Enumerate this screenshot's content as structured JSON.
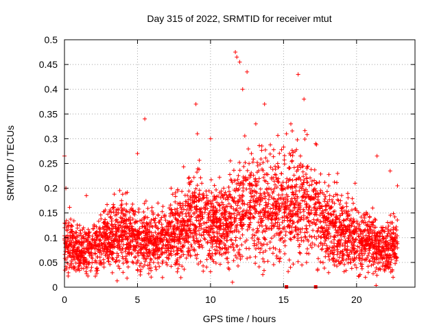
{
  "chart_data": {
    "type": "scatter",
    "title": "Day 315 of 2022, SRMTID for receiver mtut",
    "xlabel": "GPS time / hours",
    "ylabel": "SRMTID / TECUs",
    "xlim": [
      0,
      24
    ],
    "ylim": [
      0,
      0.5
    ],
    "x_ticks": [
      0,
      5,
      10,
      15,
      20
    ],
    "x_tick_labels": [
      "0",
      "5",
      "10",
      "15",
      "20"
    ],
    "y_ticks": [
      0,
      0.05,
      0.1,
      0.15,
      0.2,
      0.25,
      0.3,
      0.35,
      0.4,
      0.45,
      0.5
    ],
    "y_tick_labels": [
      "0",
      "0.05",
      "0.1",
      "0.15",
      "0.2",
      "0.25",
      "0.3",
      "0.35",
      "0.4",
      "0.45",
      "0.5"
    ],
    "grid": true,
    "marker": "plus",
    "color": "#ff0000",
    "density_profile": [
      {
        "x": 0.0,
        "y": 0.1
      },
      {
        "x": 1.0,
        "y": 0.07
      },
      {
        "x": 2.0,
        "y": 0.08
      },
      {
        "x": 3.0,
        "y": 0.1
      },
      {
        "x": 4.0,
        "y": 0.11
      },
      {
        "x": 5.0,
        "y": 0.1
      },
      {
        "x": 6.0,
        "y": 0.09
      },
      {
        "x": 7.0,
        "y": 0.1
      },
      {
        "x": 8.0,
        "y": 0.12
      },
      {
        "x": 9.0,
        "y": 0.15
      },
      {
        "x": 10.0,
        "y": 0.13
      },
      {
        "x": 11.0,
        "y": 0.12
      },
      {
        "x": 12.0,
        "y": 0.16
      },
      {
        "x": 13.0,
        "y": 0.17
      },
      {
        "x": 14.0,
        "y": 0.17
      },
      {
        "x": 15.0,
        "y": 0.16
      },
      {
        "x": 16.0,
        "y": 0.17
      },
      {
        "x": 17.0,
        "y": 0.16
      },
      {
        "x": 18.0,
        "y": 0.12
      },
      {
        "x": 19.0,
        "y": 0.11
      },
      {
        "x": 20.0,
        "y": 0.1
      },
      {
        "x": 21.0,
        "y": 0.09
      },
      {
        "x": 22.0,
        "y": 0.08
      },
      {
        "x": 22.8,
        "y": 0.09
      }
    ],
    "points": [
      {
        "x": 0.0,
        "y": 0.265
      },
      {
        "x": 0.1,
        "y": 0.2
      },
      {
        "x": 0.3,
        "y": 0.13
      },
      {
        "x": 0.5,
        "y": 0.06
      },
      {
        "x": 0.7,
        "y": 0.04
      },
      {
        "x": 0.9,
        "y": 0.09
      },
      {
        "x": 1.1,
        "y": 0.05
      },
      {
        "x": 1.3,
        "y": 0.12
      },
      {
        "x": 1.5,
        "y": 0.185
      },
      {
        "x": 1.7,
        "y": 0.05
      },
      {
        "x": 1.9,
        "y": 0.08
      },
      {
        "x": 2.1,
        "y": 0.11
      },
      {
        "x": 2.4,
        "y": 0.07
      },
      {
        "x": 2.7,
        "y": 0.13
      },
      {
        "x": 3.0,
        "y": 0.09
      },
      {
        "x": 3.3,
        "y": 0.16
      },
      {
        "x": 3.6,
        "y": 0.06
      },
      {
        "x": 3.9,
        "y": 0.12
      },
      {
        "x": 4.2,
        "y": 0.19
      },
      {
        "x": 4.5,
        "y": 0.09
      },
      {
        "x": 4.8,
        "y": 0.13
      },
      {
        "x": 5.0,
        "y": 0.27
      },
      {
        "x": 5.2,
        "y": 0.07
      },
      {
        "x": 5.5,
        "y": 0.34
      },
      {
        "x": 5.8,
        "y": 0.13
      },
      {
        "x": 6.1,
        "y": 0.05
      },
      {
        "x": 6.4,
        "y": 0.17
      },
      {
        "x": 6.7,
        "y": 0.08
      },
      {
        "x": 7.0,
        "y": 0.11
      },
      {
        "x": 7.3,
        "y": 0.2
      },
      {
        "x": 7.6,
        "y": 0.15
      },
      {
        "x": 7.9,
        "y": 0.06
      },
      {
        "x": 8.2,
        "y": 0.13
      },
      {
        "x": 8.5,
        "y": 0.22
      },
      {
        "x": 8.8,
        "y": 0.1
      },
      {
        "x": 9.0,
        "y": 0.37
      },
      {
        "x": 9.1,
        "y": 0.31
      },
      {
        "x": 9.4,
        "y": 0.21
      },
      {
        "x": 9.7,
        "y": 0.12
      },
      {
        "x": 10.0,
        "y": 0.3
      },
      {
        "x": 10.3,
        "y": 0.15
      },
      {
        "x": 10.6,
        "y": 0.08
      },
      {
        "x": 10.9,
        "y": 0.2
      },
      {
        "x": 11.2,
        "y": 0.05
      },
      {
        "x": 11.5,
        "y": 0.01
      },
      {
        "x": 11.7,
        "y": 0.475
      },
      {
        "x": 11.8,
        "y": 0.465
      },
      {
        "x": 12.0,
        "y": 0.455
      },
      {
        "x": 12.2,
        "y": 0.4
      },
      {
        "x": 12.5,
        "y": 0.435
      },
      {
        "x": 12.8,
        "y": 0.27
      },
      {
        "x": 13.1,
        "y": 0.33
      },
      {
        "x": 13.4,
        "y": 0.15
      },
      {
        "x": 13.7,
        "y": 0.37
      },
      {
        "x": 14.0,
        "y": 0.2
      },
      {
        "x": 14.3,
        "y": 0.08
      },
      {
        "x": 14.6,
        "y": 0.25
      },
      {
        "x": 14.9,
        "y": 0.17
      },
      {
        "x": 15.2,
        "y": 0.31
      },
      {
        "x": 15.5,
        "y": 0.33
      },
      {
        "x": 15.8,
        "y": 0.12
      },
      {
        "x": 16.0,
        "y": 0.43
      },
      {
        "x": 16.1,
        "y": 0.07
      },
      {
        "x": 16.4,
        "y": 0.38
      },
      {
        "x": 16.6,
        "y": 0.24
      },
      {
        "x": 16.9,
        "y": 0.15
      },
      {
        "x": 17.2,
        "y": 0.29
      },
      {
        "x": 17.5,
        "y": 0.19
      },
      {
        "x": 17.8,
        "y": 0.1
      },
      {
        "x": 18.1,
        "y": 0.14
      },
      {
        "x": 18.4,
        "y": 0.07
      },
      {
        "x": 18.7,
        "y": 0.23
      },
      {
        "x": 19.0,
        "y": 0.11
      },
      {
        "x": 19.3,
        "y": 0.17
      },
      {
        "x": 19.6,
        "y": 0.05
      },
      {
        "x": 19.9,
        "y": 0.21
      },
      {
        "x": 20.2,
        "y": 0.09
      },
      {
        "x": 20.5,
        "y": 0.13
      },
      {
        "x": 20.8,
        "y": 0.03
      },
      {
        "x": 21.1,
        "y": 0.16
      },
      {
        "x": 21.4,
        "y": 0.265
      },
      {
        "x": 21.7,
        "y": 0.06
      },
      {
        "x": 22.0,
        "y": 0.12
      },
      {
        "x": 22.3,
        "y": 0.235
      },
      {
        "x": 22.5,
        "y": 0.02
      },
      {
        "x": 22.7,
        "y": 0.1
      },
      {
        "x": 22.8,
        "y": 0.205
      }
    ],
    "baseline_markers": [
      {
        "x": 15.2,
        "y": 0
      },
      {
        "x": 17.2,
        "y": 0
      }
    ]
  }
}
